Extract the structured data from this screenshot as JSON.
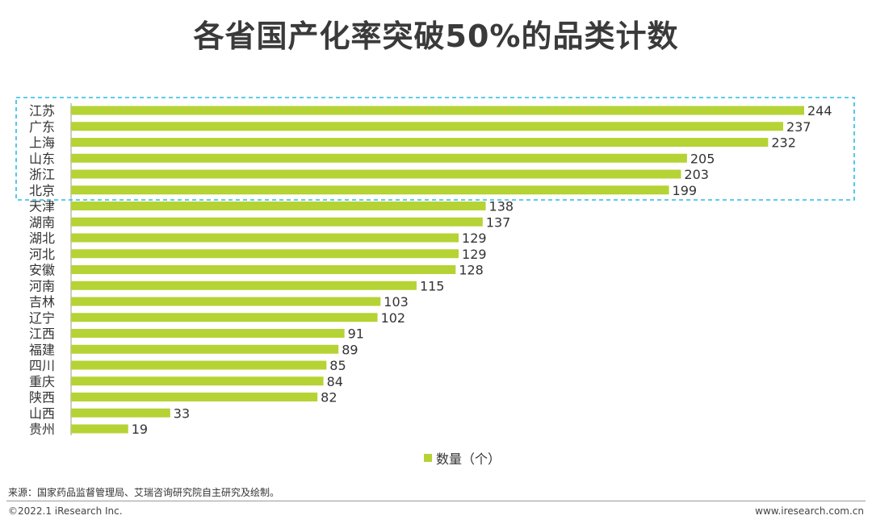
{
  "title": "各省国产化率突破50%的品类计数",
  "chart_data": {
    "type": "bar",
    "orientation": "horizontal",
    "categories": [
      "江苏",
      "广东",
      "上海",
      "山东",
      "浙江",
      "北京",
      "天津",
      "湖南",
      "湖北",
      "河北",
      "安徽",
      "河南",
      "吉林",
      "辽宁",
      "江西",
      "福建",
      "四川",
      "重庆",
      "陕西",
      "山西",
      "贵州"
    ],
    "series": [
      {
        "name": "数量（个）",
        "values": [
          244,
          237,
          232,
          205,
          203,
          199,
          138,
          137,
          129,
          129,
          128,
          115,
          103,
          102,
          91,
          89,
          85,
          84,
          82,
          33,
          19
        ]
      }
    ],
    "bar_color": "#b5d334",
    "highlight_color": "#29bce5",
    "highlighted_categories": [
      "江苏",
      "广东",
      "上海",
      "山东",
      "浙江",
      "北京"
    ],
    "xlim": [
      0,
      244
    ],
    "grid": false,
    "legend_position": "bottom"
  },
  "legend": {
    "label": "数量（个）"
  },
  "footer": {
    "source": "来源：国家药品监督管理局、艾瑞咨询研究院自主研究及绘制。",
    "copyright": "©2022.1 iResearch Inc.",
    "site": "www.iresearch.com.cn"
  }
}
